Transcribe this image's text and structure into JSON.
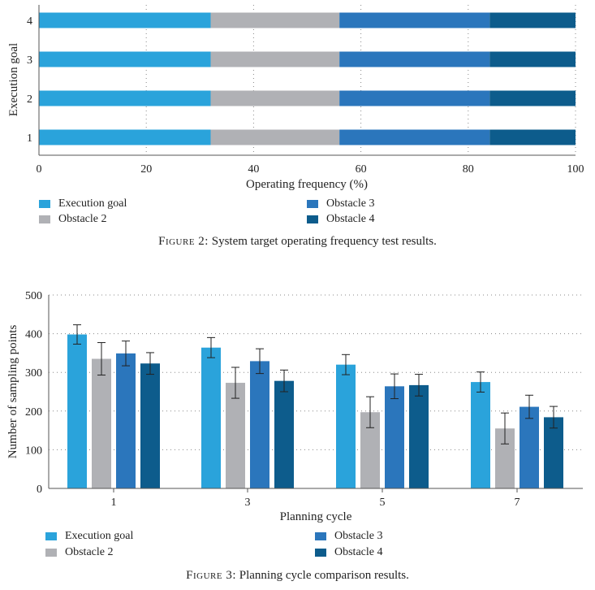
{
  "colors": {
    "execution_goal": "#2AA3DB",
    "obstacle_2": "#B0B1B5",
    "obstacle_3": "#2B76BC",
    "obstacle_4": "#0D5C8C",
    "axis": "#555555",
    "grid": "#888888"
  },
  "chart_data": [
    {
      "type": "bar",
      "orientation": "horizontal",
      "stacked": true,
      "title": "",
      "categories": [
        "1",
        "2",
        "3",
        "4"
      ],
      "series": [
        {
          "name": "Execution goal",
          "values": [
            32,
            32,
            32,
            32
          ]
        },
        {
          "name": "Obstacle 2",
          "values": [
            24,
            24,
            24,
            24
          ]
        },
        {
          "name": "Obstacle 3",
          "values": [
            28,
            28,
            28,
            28
          ]
        },
        {
          "name": "Obstacle 4",
          "values": [
            16,
            16,
            16,
            16
          ]
        }
      ],
      "xlabel": "Operating frequency (%)",
      "ylabel": "Execution goal",
      "xlim": [
        0,
        100
      ],
      "xticks": [
        "0",
        "20",
        "40",
        "60",
        "80",
        "100"
      ],
      "grid": "vertical dotted",
      "legend_position": "bottom"
    },
    {
      "type": "bar",
      "orientation": "vertical",
      "title": "",
      "categories": [
        "1",
        "3",
        "5",
        "7"
      ],
      "series": [
        {
          "name": "Execution goal",
          "values": [
            398,
            364,
            320,
            275
          ],
          "errors": [
            25,
            26,
            26,
            26
          ]
        },
        {
          "name": "Obstacle 2",
          "values": [
            335,
            273,
            197,
            155
          ],
          "errors": [
            42,
            40,
            40,
            40
          ]
        },
        {
          "name": "Obstacle 3",
          "values": [
            349,
            329,
            264,
            211
          ],
          "errors": [
            32,
            32,
            32,
            30
          ]
        },
        {
          "name": "Obstacle 4",
          "values": [
            323,
            278,
            267,
            184
          ],
          "errors": [
            28,
            28,
            28,
            28
          ]
        }
      ],
      "xlabel": "Planning cycle",
      "ylabel": "Number of sampling points",
      "ylim": [
        0,
        500
      ],
      "yticks": [
        "0",
        "100",
        "200",
        "300",
        "400",
        "500"
      ],
      "grid": "horizontal dotted",
      "legend_position": "bottom"
    }
  ],
  "figure2": {
    "caption_label": "Figure 2:",
    "caption_text": "System target operating frequency test results.",
    "legend": [
      "Execution goal",
      "Obstacle 2",
      "Obstacle 3",
      "Obstacle 4"
    ]
  },
  "figure3": {
    "caption_label": "Figure 3:",
    "caption_text": "Planning cycle comparison results.",
    "legend": [
      "Execution goal",
      "Obstacle 2",
      "Obstacle 3",
      "Obstacle 4"
    ]
  }
}
